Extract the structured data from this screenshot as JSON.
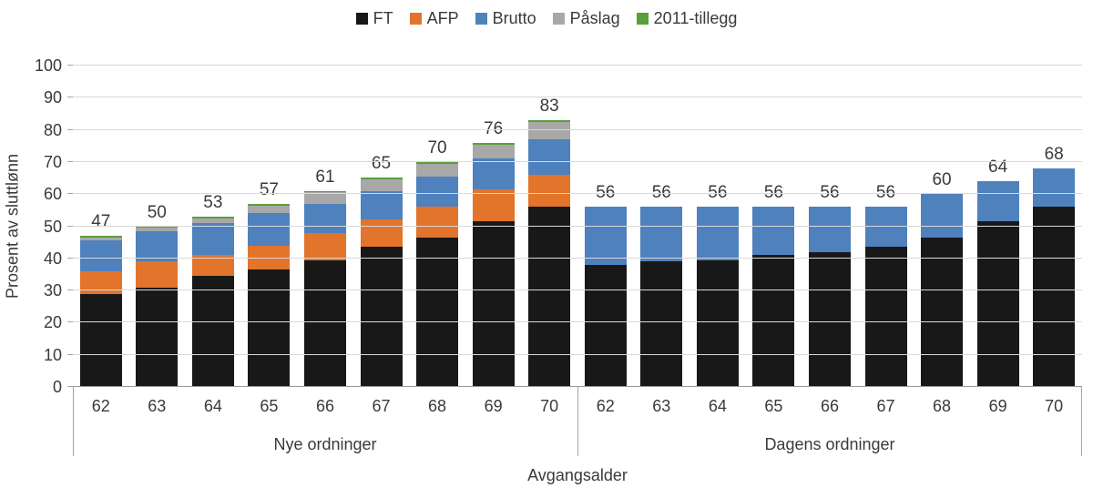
{
  "chart_data": {
    "type": "bar",
    "stacked": true,
    "title": "",
    "ylabel": "Prosent av sluttlønn",
    "xlabel": "Avgangsalder",
    "ylim": [
      0,
      100
    ],
    "yticks": [
      0,
      10,
      20,
      30,
      40,
      50,
      60,
      70,
      80,
      90,
      100
    ],
    "grid": true,
    "legend_position": "top",
    "legend": [
      {
        "name": "FT",
        "color": "#181818"
      },
      {
        "name": "AFP",
        "color": "#e2742c"
      },
      {
        "name": "Brutto",
        "color": "#4f81bd"
      },
      {
        "name": "Påslag",
        "color": "#a8a8a8"
      },
      {
        "name": "2011-tillegg",
        "color": "#58a038"
      }
    ],
    "groups": [
      {
        "label": "Nye ordninger",
        "categories": [
          "62",
          "63",
          "64",
          "65",
          "66",
          "67",
          "68",
          "69",
          "70"
        ],
        "totals": [
          47,
          50,
          53,
          57,
          61,
          65,
          70,
          76,
          83
        ],
        "series": [
          {
            "name": "FT",
            "values": [
              29,
              31,
              34.5,
              36.5,
              39.5,
              43.5,
              46.5,
              51.5,
              56
            ]
          },
          {
            "name": "AFP",
            "values": [
              7,
              8,
              6.5,
              7.5,
              8.5,
              8.5,
              9.5,
              10,
              10
            ]
          },
          {
            "name": "Brutto",
            "values": [
              9.5,
              9.5,
              10,
              10,
              9,
              9,
              9.5,
              9.5,
              11
            ]
          },
          {
            "name": "Påslag",
            "values": [
              1,
              1,
              1.5,
              2.5,
              3.5,
              3.5,
              4,
              4.5,
              5.5
            ]
          },
          {
            "name": "2011-tillegg",
            "values": [
              0.5,
              0.5,
              0.5,
              0.5,
              0.5,
              0.5,
              0.5,
              0.5,
              0.5
            ]
          }
        ]
      },
      {
        "label": "Dagens ordninger",
        "categories": [
          "62",
          "63",
          "64",
          "65",
          "66",
          "67",
          "68",
          "69",
          "70"
        ],
        "totals": [
          56,
          56,
          56,
          56,
          56,
          56,
          60,
          64,
          68
        ],
        "series": [
          {
            "name": "FT",
            "values": [
              38,
              39,
              39.5,
              41,
              42,
              43.5,
              46.5,
              51.5,
              56
            ]
          },
          {
            "name": "AFP",
            "values": [
              0,
              0,
              0,
              0,
              0,
              0,
              0,
              0,
              0
            ]
          },
          {
            "name": "Brutto",
            "values": [
              18,
              17,
              16.5,
              15,
              14,
              12.5,
              13.5,
              12.5,
              12
            ]
          },
          {
            "name": "Påslag",
            "values": [
              0,
              0,
              0,
              0,
              0,
              0,
              0,
              0,
              0
            ]
          },
          {
            "name": "2011-tillegg",
            "values": [
              0,
              0,
              0,
              0,
              0,
              0,
              0,
              0,
              0
            ]
          }
        ]
      }
    ]
  }
}
